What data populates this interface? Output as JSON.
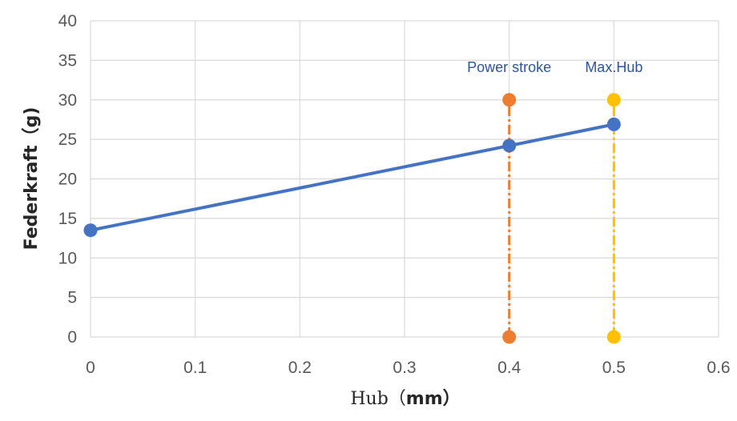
{
  "chart_data": {
    "type": "line",
    "xlabel": "Hub（mm）",
    "ylabel": "Federkraft（g)",
    "xlim": [
      0,
      0.6
    ],
    "ylim": [
      0,
      40
    ],
    "x_ticks": [
      0,
      0.1,
      0.2,
      0.3,
      0.4,
      0.5,
      0.6
    ],
    "y_ticks": [
      0,
      5,
      10,
      15,
      20,
      25,
      30,
      35,
      40
    ],
    "grid": true,
    "series": [
      {
        "x": [
          0,
          0.4,
          0.5
        ],
        "y": [
          13.5,
          24.2,
          26.9
        ],
        "color": "#4472C4",
        "style": "solid"
      },
      {
        "x": [
          0.4,
          0.4
        ],
        "y": [
          0,
          30
        ],
        "color": "#ED7D31",
        "style": "dash-dot"
      },
      {
        "x": [
          0.5,
          0.5
        ],
        "y": [
          0,
          30
        ],
        "color": "#FFC000",
        "style": "dash-dot"
      }
    ],
    "annotations": [
      {
        "text": "Power stroke",
        "x": 0.4,
        "y": 33.5,
        "color": "#2E5597"
      },
      {
        "text": "Max.Hub",
        "x": 0.5,
        "y": 33.5,
        "color": "#2E5597"
      }
    ],
    "colors": {
      "grid": "#D9D9D9",
      "tick_text": "#595959",
      "axis_title": "#262626"
    }
  }
}
